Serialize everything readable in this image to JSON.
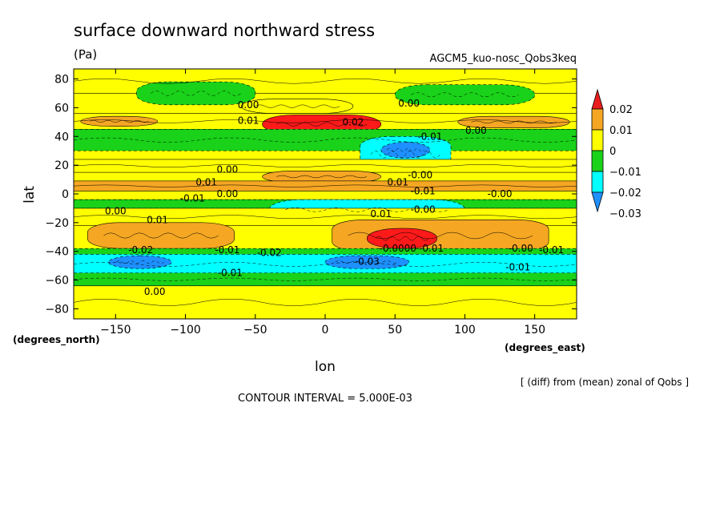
{
  "chart_data": {
    "type": "heatmap",
    "title": "surface downward northward stress",
    "units": "(Pa)",
    "subtitle": "AGCM5_kuo-nosc_Qobs3keq",
    "xlabel": "lon",
    "ylabel": "lat",
    "x_units": "(degrees_east)",
    "y_units": "(degrees_north)",
    "xlim": [
      -180,
      180
    ],
    "ylim": [
      -87,
      87
    ],
    "x_ticks": [
      -150,
      -100,
      -50,
      0,
      50,
      100,
      150
    ],
    "y_ticks": [
      -80,
      -60,
      -40,
      -20,
      0,
      20,
      40,
      60,
      80
    ],
    "x_tick_labels": [
      "−150",
      "−100",
      "−50",
      "0",
      "50",
      "100",
      "150"
    ],
    "y_tick_labels": [
      "−80",
      "−60",
      "−40",
      "−20",
      "0",
      "20",
      "40",
      "60",
      "80"
    ],
    "contour_interval_label": "CONTOUR INTERVAL = 5.000E-03",
    "note": "[ (diff) from (mean) zonal of Qobs ]",
    "colorbar": {
      "levels": [
        -0.03,
        -0.02,
        -0.01,
        0,
        0.01,
        0.02
      ],
      "labels": [
        "−0.03",
        "−0.02",
        "−0.01",
        "0",
        "0.01",
        "0.02"
      ],
      "colors": [
        "#ff1a1a",
        "#f5a623",
        "#ffff00",
        "#19d219",
        "#00ffff",
        "#1e90ff"
      ],
      "upper_colors_top_to_bottom": [
        "#e81e1e",
        "#f5a623",
        "#ffff00",
        "#19d219",
        "#00ffff",
        "#1e90ff"
      ]
    },
    "bands": [
      {
        "lat": [
          70,
          87
        ],
        "lon": [
          -180,
          180
        ],
        "value": 0.005
      },
      {
        "lat": [
          62,
          78
        ],
        "lon": [
          -135,
          -50
        ],
        "value": -0.005
      },
      {
        "lat": [
          62,
          76
        ],
        "lon": [
          50,
          150
        ],
        "value": -0.005
      },
      {
        "lat": [
          56,
          66
        ],
        "lon": [
          -60,
          20
        ],
        "value": 0.005
      },
      {
        "lat": [
          45,
          56
        ],
        "lon": [
          -180,
          180
        ],
        "value": 0.005
      },
      {
        "lat": [
          47,
          54
        ],
        "lon": [
          -175,
          -120
        ],
        "value": 0.012
      },
      {
        "lat": [
          46,
          54
        ],
        "lon": [
          95,
          175
        ],
        "value": 0.012
      },
      {
        "lat": [
          42,
          55
        ],
        "lon": [
          -45,
          40
        ],
        "value": 0.022
      },
      {
        "lat": [
          30,
          45
        ],
        "lon": [
          -180,
          180
        ],
        "value": -0.005
      },
      {
        "lat": [
          15,
          40
        ],
        "lon": [
          25,
          90
        ],
        "value": -0.015
      },
      {
        "lat": [
          25,
          36
        ],
        "lon": [
          40,
          75
        ],
        "value": -0.022
      },
      {
        "lat": [
          15,
          24
        ],
        "lon": [
          -180,
          180
        ],
        "value": 0.003
      },
      {
        "lat": [
          8,
          16
        ],
        "lon": [
          -45,
          40
        ],
        "value": 0.012
      },
      {
        "lat": [
          2,
          9
        ],
        "lon": [
          -180,
          180
        ],
        "value": 0.012
      },
      {
        "lat": [
          -4,
          2
        ],
        "lon": [
          -180,
          180
        ],
        "value": 0.003
      },
      {
        "lat": [
          -10,
          -4
        ],
        "lon": [
          -180,
          180
        ],
        "value": -0.006
      },
      {
        "lat": [
          -18,
          -4
        ],
        "lon": [
          -40,
          100
        ],
        "value": -0.016
      },
      {
        "lat": [
          -22,
          -10
        ],
        "lon": [
          -180,
          180
        ],
        "value": 0.003
      },
      {
        "lat": [
          -38,
          -20
        ],
        "lon": [
          -170,
          -65
        ],
        "value": 0.012
      },
      {
        "lat": [
          -40,
          -18
        ],
        "lon": [
          5,
          160
        ],
        "value": 0.012
      },
      {
        "lat": [
          -38,
          -24
        ],
        "lon": [
          30,
          80
        ],
        "value": 0.024
      },
      {
        "lat": [
          -44,
          -38
        ],
        "lon": [
          -180,
          180
        ],
        "value": -0.006
      },
      {
        "lat": [
          -56,
          -42
        ],
        "lon": [
          -180,
          180
        ],
        "value": -0.016
      },
      {
        "lat": [
          -52,
          -43
        ],
        "lon": [
          -155,
          -110
        ],
        "value": -0.025
      },
      {
        "lat": [
          -52,
          -43
        ],
        "lon": [
          0,
          60
        ],
        "value": -0.025
      },
      {
        "lat": [
          -64,
          -55
        ],
        "lon": [
          -180,
          180
        ],
        "value": -0.006
      },
      {
        "lat": [
          -87,
          -64
        ],
        "lon": [
          -180,
          180
        ],
        "value": 0.003
      }
    ],
    "contour_labels": [
      {
        "text": "0.00",
        "lon": -55,
        "lat": 62
      },
      {
        "text": "0.01",
        "lon": -55,
        "lat": 51
      },
      {
        "text": "0.02",
        "lon": 20,
        "lat": 50
      },
      {
        "text": "0.00",
        "lon": 60,
        "lat": 63
      },
      {
        "text": "-0.01",
        "lon": 75,
        "lat": 40
      },
      {
        "text": "0.00",
        "lon": 108,
        "lat": 44
      },
      {
        "text": "0.00",
        "lon": -70,
        "lat": 17
      },
      {
        "text": "0.01",
        "lon": -85,
        "lat": 8
      },
      {
        "text": "-0.01",
        "lon": -95,
        "lat": -3
      },
      {
        "text": "0.00",
        "lon": -70,
        "lat": 0
      },
      {
        "text": "0.01",
        "lon": 52,
        "lat": 8
      },
      {
        "text": "-0.00",
        "lon": 68,
        "lat": 13
      },
      {
        "text": "-0.01",
        "lon": 70,
        "lat": 2
      },
      {
        "text": "-0.00",
        "lon": 125,
        "lat": 0
      },
      {
        "text": "0.00",
        "lon": -150,
        "lat": -12
      },
      {
        "text": "0.01",
        "lon": -120,
        "lat": -18
      },
      {
        "text": "0.01",
        "lon": 40,
        "lat": -14
      },
      {
        "text": "-0.00",
        "lon": 70,
        "lat": -11
      },
      {
        "text": "-0.02",
        "lon": -132,
        "lat": -39
      },
      {
        "text": "-0.01",
        "lon": -70,
        "lat": -39
      },
      {
        "text": "-0.02",
        "lon": -40,
        "lat": -41
      },
      {
        "text": "-0.03",
        "lon": 30,
        "lat": -47
      },
      {
        "text": "-0.0000",
        "lon": 52,
        "lat": -38
      },
      {
        "text": "-0.01",
        "lon": 76,
        "lat": -38
      },
      {
        "text": "-0.00",
        "lon": 140,
        "lat": -38
      },
      {
        "text": "-0.01",
        "lon": 162,
        "lat": -39
      },
      {
        "text": "-0.01",
        "lon": -68,
        "lat": -55
      },
      {
        "text": "-0.01",
        "lon": 138,
        "lat": -51
      },
      {
        "text": "0.00",
        "lon": -122,
        "lat": -68
      }
    ]
  }
}
